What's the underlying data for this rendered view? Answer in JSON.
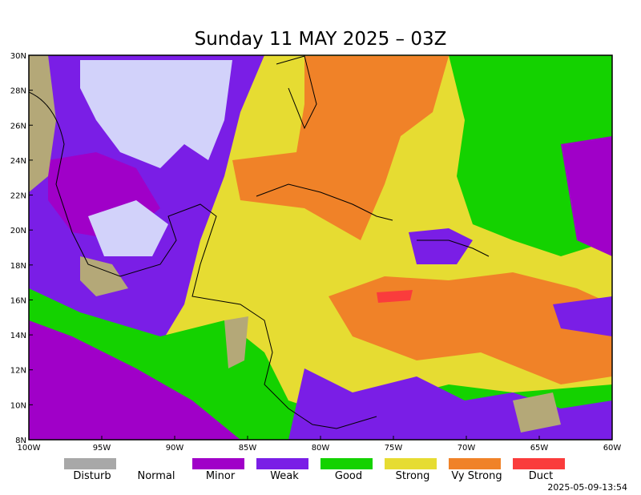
{
  "title": "Sunday 11 MAY 2025 – 03Z",
  "x_axis": {
    "labels": [
      "100W",
      "95W",
      "90W",
      "85W",
      "80W",
      "75W",
      "70W",
      "65W",
      "60W"
    ]
  },
  "y_axis": {
    "labels": [
      "30N",
      "28N",
      "26N",
      "24N",
      "22N",
      "20N",
      "18N",
      "16N",
      "14N",
      "12N",
      "10N",
      "8N"
    ]
  },
  "legend": [
    {
      "label": "Disturb",
      "color": "#a8a8a8"
    },
    {
      "label": "Normal",
      "color": "#ffffff"
    },
    {
      "label": "Minor",
      "color": "#a000c8"
    },
    {
      "label": "Weak",
      "color": "#7a1ee6"
    },
    {
      "label": "Good",
      "color": "#14d200"
    },
    {
      "label": "Strong",
      "color": "#e6dc32"
    },
    {
      "label": "Vy Strong",
      "color": "#f08228"
    },
    {
      "label": "Duct",
      "color": "#fa3c3c"
    }
  ],
  "timestamp": "2025-05-09-13:54"
}
